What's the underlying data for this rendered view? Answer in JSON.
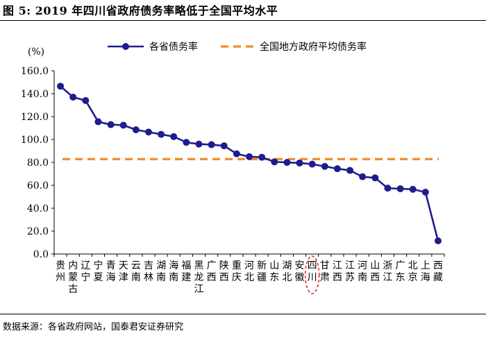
{
  "figure": {
    "title": "图 5:  2019 年四川省政府债务率略低于全国平均水平",
    "source": "数据来源：各省政府网站，国泰君安证券研究"
  },
  "chart_data": {
    "type": "line",
    "title": "2019 年四川省政府债务率略低于全国平均水平",
    "ylabel": "(%)",
    "ylim": [
      0,
      160
    ],
    "yticks": [
      "0.0",
      "20.0",
      "40.0",
      "60.0",
      "80.0",
      "100.0",
      "120.0",
      "140.0",
      "160.0"
    ],
    "categories": [
      "贵州",
      "内蒙古",
      "辽宁",
      "宁夏",
      "青海",
      "天津",
      "云南",
      "吉林",
      "湖南",
      "海南",
      "福建",
      "黑龙江",
      "广西",
      "陕西",
      "重庆",
      "河北",
      "新疆",
      "山东",
      "湖北",
      "安徽",
      "四川",
      "甘肃",
      "江西",
      "江苏",
      "河南",
      "山西",
      "浙江",
      "广东",
      "北京",
      "上海",
      "西藏"
    ],
    "highlight": "四川",
    "series": [
      {
        "name": "各省债务率",
        "style": "line-marker",
        "color": "#1f1d8c",
        "values": [
          146.5,
          137.0,
          134.0,
          115.5,
          113.0,
          112.5,
          108.5,
          106.5,
          104.5,
          102.5,
          97.5,
          96.0,
          95.5,
          94.5,
          87.5,
          85.0,
          84.5,
          80.5,
          80.0,
          79.5,
          78.5,
          76.5,
          74.5,
          73.0,
          67.5,
          66.5,
          57.5,
          57.0,
          56.5,
          54.0,
          11.5
        ]
      },
      {
        "name": "全国地方政府平均债务率",
        "style": "dashed",
        "color": "#f28c28",
        "value": 82.9
      }
    ],
    "legend": "top"
  }
}
